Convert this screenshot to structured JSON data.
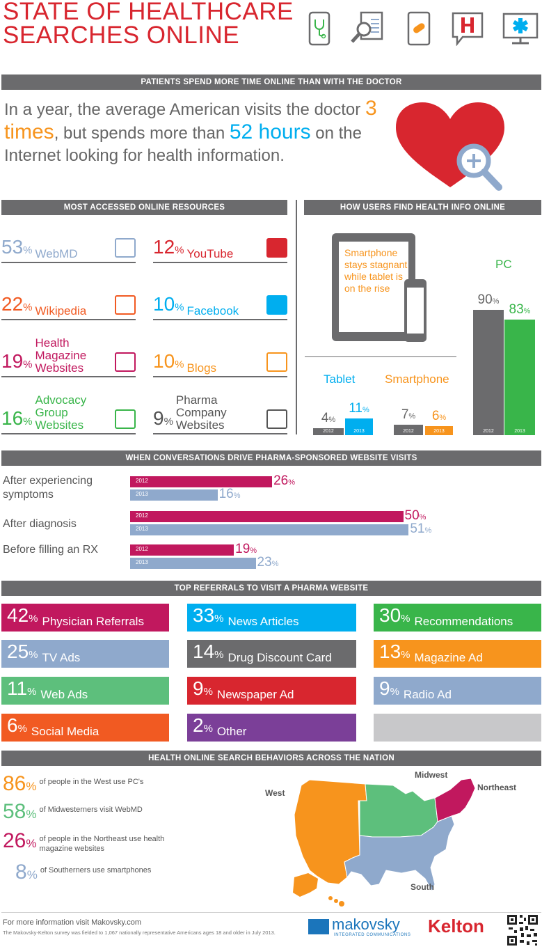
{
  "header": {
    "title_line1": "STATE OF HEALTHCARE",
    "title_line2": "SEARCHES ONLINE",
    "icons": [
      "phone-stethoscope-icon",
      "magnifier-document-icon",
      "tablet-pill-icon",
      "hospital-speech-icon",
      "monitor-medical-icon"
    ]
  },
  "sections": {
    "s1": "PATIENTS SPEND MORE TIME ONLINE THAN WITH THE DOCTOR",
    "s2a": "MOST ACCESSED ONLINE RESOURCES",
    "s2b": "HOW USERS FIND HEALTH INFO ONLINE",
    "s3": "WHEN CONVERSATIONS DRIVE PHARMA-SPONSORED WEBSITE VISITS",
    "s4": "TOP REFERRALS TO VISIT A PHARMA WEBSITE",
    "s5": "HEALTH ONLINE SEARCH BEHAVIORS ACROSS THE NATION"
  },
  "intro": {
    "part1": "In a year, the average American visits the doctor ",
    "highlight1": "3 times",
    "part2": ", but spends more than ",
    "highlight2": "52 hours",
    "part3": " on the Internet looking for health information."
  },
  "resources": [
    {
      "pct": "53",
      "sym": "%",
      "label": "WebMD",
      "color": "#8fa9cc",
      "icon": "webmd-monitor-icon"
    },
    {
      "pct": "12",
      "sym": "%",
      "label": "YouTube",
      "color": "#d8262f",
      "icon": "youtube-icon"
    },
    {
      "pct": "22",
      "sym": "%",
      "label": "Wikipedia",
      "color": "#f15a22",
      "icon": "wikipedia-tablet-icon"
    },
    {
      "pct": "10",
      "sym": "%",
      "label": "Facebook",
      "color": "#00aeef",
      "icon": "facebook-icon"
    },
    {
      "pct": "19",
      "sym": "%",
      "label": "Health Magazine Websites",
      "color": "#c1185e",
      "icon": "open-book-icon"
    },
    {
      "pct": "10",
      "sym": "%",
      "label": "Blogs",
      "color": "#f7941d",
      "icon": "speech-bubbles-icon"
    },
    {
      "pct": "16",
      "sym": "%",
      "label": "Advocacy Group Websites",
      "color": "#39b54a",
      "icon": "laptop-at-icon"
    },
    {
      "pct": "9",
      "sym": "%",
      "label": "Pharma Company Websites",
      "color": "#555555",
      "icon": "star-of-life-icon"
    }
  ],
  "device_chart": {
    "callout": "Smartphone stays stagnant while tablet is on the rise",
    "pc_label": "PC",
    "tablet_label": "Tablet",
    "smartphone_label": "Smartphone",
    "year_2012": "2012",
    "year_2013": "2013",
    "percent_symbol": "%"
  },
  "chart_data": [
    {
      "type": "bar",
      "categories": [
        "Tablet",
        "Smartphone",
        "PC"
      ],
      "series": [
        {
          "name": "2012",
          "values": [
            4,
            7,
            90
          ]
        },
        {
          "name": "2013",
          "values": [
            11,
            6,
            83
          ]
        }
      ],
      "colors": {
        "2012": "#6b6b6d",
        "tablet_2013": "#00aeef",
        "smartphone_2013": "#f7941d",
        "pc_2013": "#39b54a"
      },
      "ylim": [
        0,
        100
      ]
    },
    {
      "type": "bar",
      "orientation": "horizontal",
      "categories": [
        "After experiencing symptoms",
        "After diagnosis",
        "Before filling an RX"
      ],
      "series": [
        {
          "name": "2012",
          "values": [
            26,
            50,
            19
          ],
          "color": "#c1185e"
        },
        {
          "name": "2013",
          "values": [
            16,
            51,
            23
          ],
          "color": "#8fa9cc"
        }
      ],
      "xlim": [
        0,
        60
      ]
    }
  ],
  "pharma_labels": [
    "After experiencing symptoms",
    "After diagnosis",
    "Before filling an RX"
  ],
  "referrals": [
    {
      "pct": "42",
      "label": "Physician Referrals",
      "color": "#c1185e"
    },
    {
      "pct": "33",
      "label": "News Articles",
      "color": "#00aeef"
    },
    {
      "pct": "30",
      "label": "Recommendations",
      "color": "#39b54a"
    },
    {
      "pct": "25",
      "label": "TV Ads",
      "color": "#8fa9cc"
    },
    {
      "pct": "14",
      "label": "Drug Discount Card",
      "color": "#6b6b6d"
    },
    {
      "pct": "13",
      "label": "Magazine Ad",
      "color": "#f7941d"
    },
    {
      "pct": "11",
      "label": "Web Ads",
      "color": "#5dbf7c"
    },
    {
      "pct": "9",
      "label": "Newspaper Ad",
      "color": "#d8262f"
    },
    {
      "pct": "9",
      "label": "Radio Ad",
      "color": "#8fa9cc"
    },
    {
      "pct": "6",
      "label": "Social Media",
      "color": "#f15a22"
    },
    {
      "pct": "2",
      "label": "Other",
      "color": "#7b3f98"
    },
    {
      "pct": "",
      "label": "",
      "color": "#c8c8ca"
    }
  ],
  "stats": [
    {
      "pct": "86",
      "text": "of people in the West use PC's",
      "color": "#f7941d"
    },
    {
      "pct": "58",
      "text": "of Midwesterners visit WebMD",
      "color": "#5dbf7c"
    },
    {
      "pct": "26",
      "text": "of people in the Northeast use health magazine websites",
      "color": "#c1185e"
    },
    {
      "pct": "8",
      "text": "of Southerners use smartphones",
      "color": "#8fa9cc"
    }
  ],
  "regions": {
    "west": "West",
    "midwest": "Midwest",
    "northeast": "Northeast",
    "south": "South"
  },
  "footer": {
    "info": "For more information visit Makovsky.com",
    "note": "The Makovsky-Kelton survey was fielded to 1,067 nationally representative Americans ages 18 and older in July 2013.",
    "makovsky": "makovsky",
    "makovsky_sub": "INTEGRATED COMMUNICATIONS",
    "kelton": "Kelton"
  }
}
